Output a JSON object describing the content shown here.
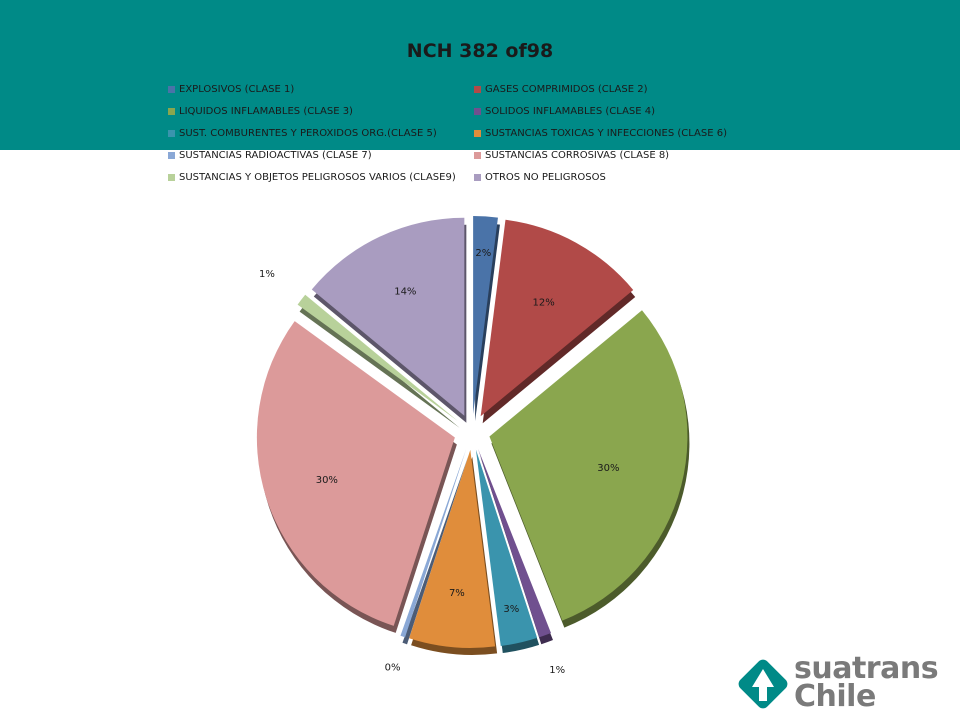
{
  "chart_data": {
    "type": "pie",
    "title": "NCH 382 of98",
    "legend_position": "top",
    "categories": [
      "EXPLOSIVOS (CLASE 1)",
      "GASES COMPRIMIDOS (CLASE 2)",
      "LIQUIDOS INFLAMABLES (CLASE 3)",
      "SOLIDOS INFLAMABLES (CLASE 4)",
      "SUST. COMBURENTES Y PEROXIDOS ORG.(CLASE 5)",
      "SUSTANCIAS TOXICAS Y INFECCIONES (CLASE 6)",
      "SUSTANCIAS RADIOACTIVAS (CLASE 7)",
      "SUSTANCIAS CORROSIVAS (CLASE 8)",
      "SUSTANCIAS Y OBJETOS PELIGROSOS VARIOS (CLASE9)",
      "OTROS NO PELIGROSOS"
    ],
    "values": [
      2,
      12,
      30,
      1,
      3,
      7,
      0,
      30,
      1,
      14
    ],
    "labels": [
      "2%",
      "12%",
      "30%",
      "1%",
      "3%",
      "7%",
      "0%",
      "30%",
      "1%",
      "14%"
    ],
    "colors": [
      "#4a73a8",
      "#b14a48",
      "#8aa64e",
      "#70508f",
      "#3a94ad",
      "#e08d3b",
      "#8aa8d6",
      "#dc9a9a",
      "#b8d19a",
      "#a99cc0"
    ],
    "exploded": true,
    "style": "3d"
  },
  "branding": {
    "logo_text_1": "suatrans",
    "logo_text_2": "Chile",
    "brand_color": "#008a87"
  }
}
